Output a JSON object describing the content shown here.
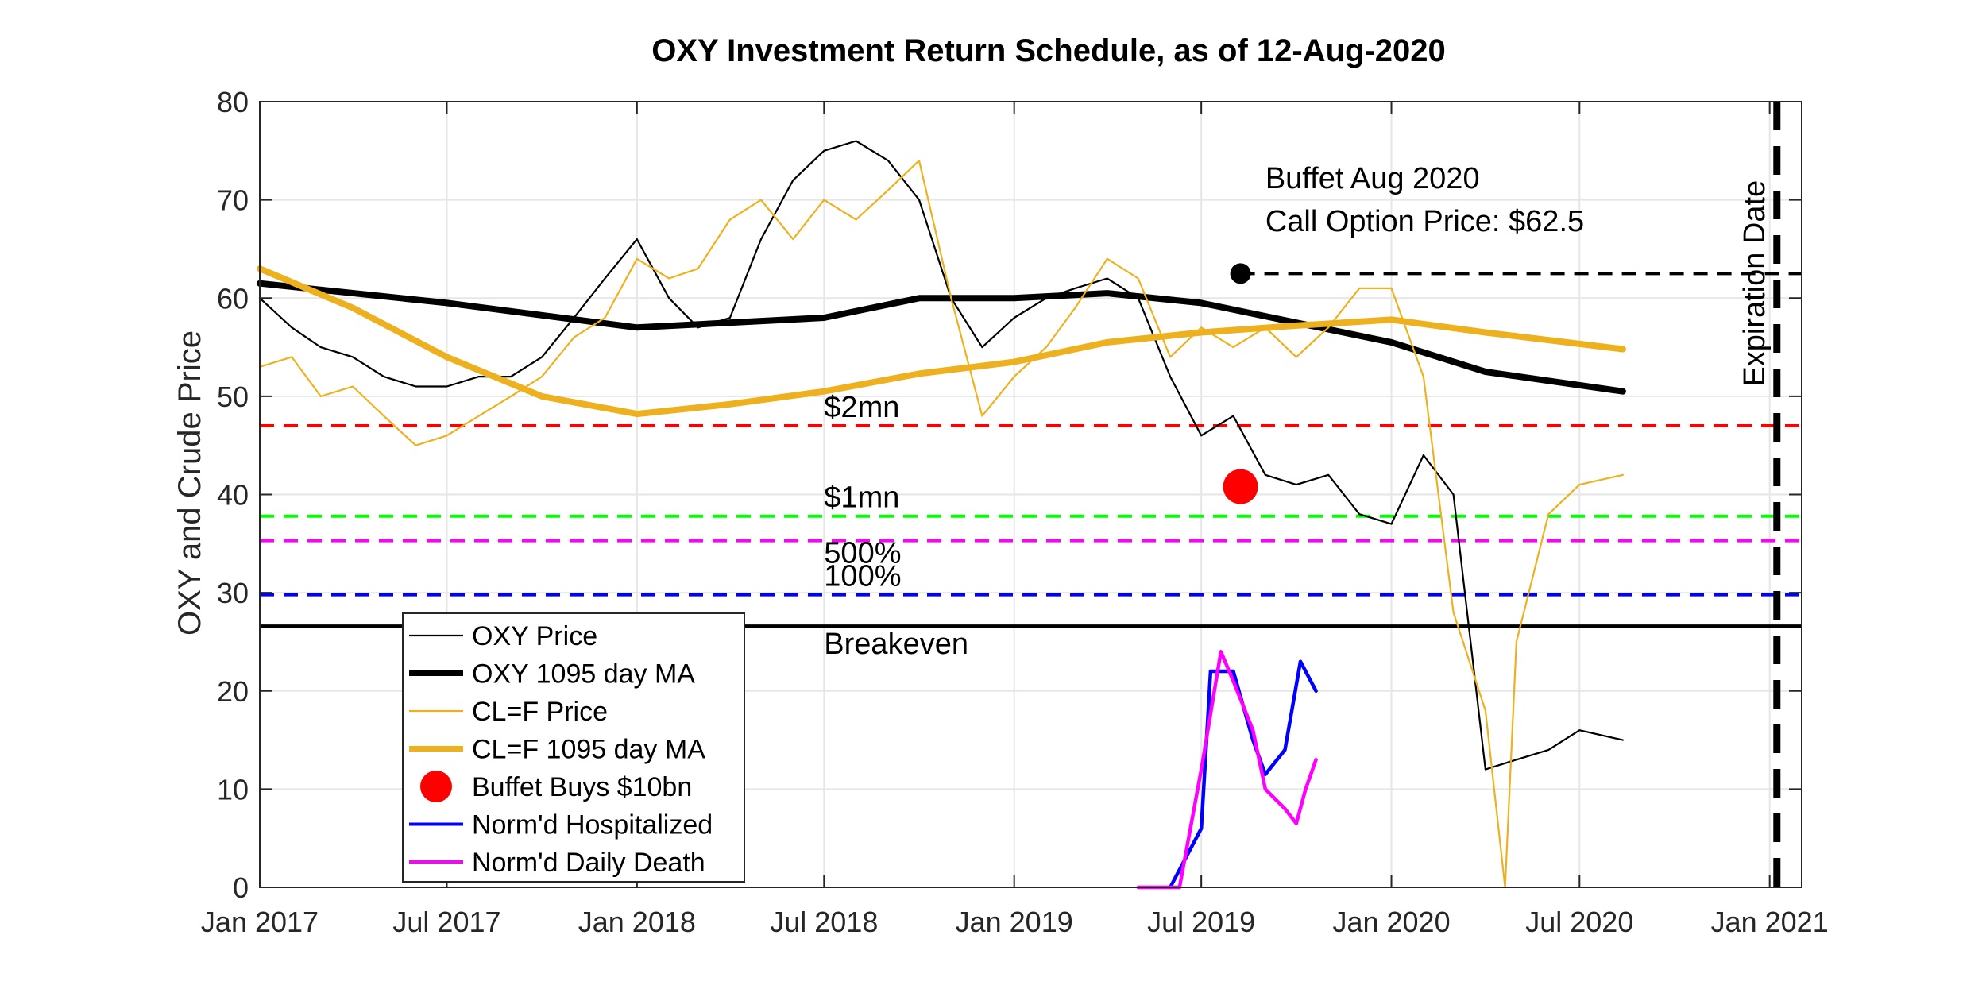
{
  "chart_data": {
    "type": "line",
    "title": "OXY Investment Return Schedule, as of 12-Aug-2020",
    "xlabel": "",
    "ylabel": "OXY and Crude Price",
    "xlim": [
      "2017-01-01",
      "2021-02-01"
    ],
    "ylim": [
      0,
      80
    ],
    "grid": true,
    "x_ticks": [
      "Jan 2017",
      "Jul 2017",
      "Jan 2018",
      "Jul 2018",
      "Jan 2019",
      "Jul 2019",
      "Jan 2020",
      "Jul 2020",
      "Jan 2021"
    ],
    "x_tick_dates": [
      "2017-01-01",
      "2017-07-01",
      "2018-01-01",
      "2018-07-01",
      "2019-01-01",
      "2019-07-01",
      "2020-01-01",
      "2020-07-01",
      "2021-01-01"
    ],
    "y_ticks": [
      0,
      10,
      20,
      30,
      40,
      50,
      60,
      70,
      80
    ],
    "legend": {
      "placement": "bottom-left",
      "entries": [
        "OXY Price",
        "OXY 1095 day MA",
        "CL=F Price",
        "CL=F 1095 day MA",
        "Buffet Buys $10bn",
        "Norm'd Hospitalized",
        "Norm'd Daily Death"
      ]
    },
    "series": [
      {
        "name": "OXY Price",
        "color": "#000000",
        "style": "thin",
        "x": [
          "2017-01-01",
          "2017-02-01",
          "2017-03-01",
          "2017-04-01",
          "2017-05-01",
          "2017-06-01",
          "2017-07-01",
          "2017-08-01",
          "2017-09-01",
          "2017-10-01",
          "2017-11-01",
          "2017-12-01",
          "2018-01-01",
          "2018-02-01",
          "2018-03-01",
          "2018-04-01",
          "2018-05-01",
          "2018-06-01",
          "2018-07-01",
          "2018-08-01",
          "2018-09-01",
          "2018-10-01",
          "2018-11-01",
          "2018-12-01",
          "2019-01-01",
          "2019-02-01",
          "2019-03-01",
          "2019-04-01",
          "2019-05-01",
          "2019-06-01",
          "2019-07-01",
          "2019-08-01",
          "2019-09-01",
          "2019-10-01",
          "2019-11-01",
          "2019-12-01",
          "2020-01-01",
          "2020-02-01",
          "2020-03-01",
          "2020-04-01",
          "2020-05-01",
          "2020-06-01",
          "2020-07-01",
          "2020-08-12"
        ],
        "values": [
          60,
          57,
          55,
          54,
          52,
          51,
          51,
          52,
          52,
          54,
          58,
          62,
          66,
          60,
          57,
          58,
          66,
          72,
          75,
          76,
          74,
          70,
          60,
          55,
          58,
          60,
          61,
          62,
          60,
          52,
          46,
          48,
          42,
          41,
          42,
          38,
          37,
          44,
          40,
          12,
          13,
          14,
          16,
          15
        ]
      },
      {
        "name": "OXY 1095 day MA",
        "color": "#000000",
        "style": "thick",
        "x": [
          "2017-01-01",
          "2017-07-01",
          "2018-01-01",
          "2018-07-01",
          "2018-10-01",
          "2019-01-01",
          "2019-04-01",
          "2019-07-01",
          "2019-10-01",
          "2020-01-01",
          "2020-04-01",
          "2020-08-12"
        ],
        "values": [
          61.5,
          59.5,
          57.0,
          58.0,
          60.0,
          60.0,
          60.5,
          59.5,
          57.5,
          55.5,
          52.5,
          50.5
        ]
      },
      {
        "name": "CL=F Price",
        "color": "#EDB120",
        "style": "thin",
        "x": [
          "2017-01-01",
          "2017-02-01",
          "2017-03-01",
          "2017-04-01",
          "2017-05-01",
          "2017-06-01",
          "2017-07-01",
          "2017-08-01",
          "2017-09-01",
          "2017-10-01",
          "2017-11-01",
          "2017-12-01",
          "2018-01-01",
          "2018-02-01",
          "2018-03-01",
          "2018-04-01",
          "2018-05-01",
          "2018-06-01",
          "2018-07-01",
          "2018-08-01",
          "2018-09-01",
          "2018-10-01",
          "2018-11-01",
          "2018-12-01",
          "2019-01-01",
          "2019-02-01",
          "2019-03-01",
          "2019-04-01",
          "2019-05-01",
          "2019-06-01",
          "2019-07-01",
          "2019-08-01",
          "2019-09-01",
          "2019-10-01",
          "2019-11-01",
          "2019-12-01",
          "2020-01-01",
          "2020-02-01",
          "2020-03-01",
          "2020-04-01",
          "2020-04-20",
          "2020-05-01",
          "2020-06-01",
          "2020-07-01",
          "2020-08-12"
        ],
        "values": [
          53,
          54,
          50,
          51,
          48,
          45,
          46,
          48,
          50,
          52,
          56,
          58,
          64,
          62,
          63,
          68,
          70,
          66,
          70,
          68,
          71,
          74,
          60,
          48,
          52,
          55,
          59,
          64,
          62,
          54,
          57,
          55,
          57,
          54,
          57,
          61,
          61,
          52,
          28,
          18,
          0,
          25,
          38,
          41,
          42
        ]
      },
      {
        "name": "CL=F 1095 day MA",
        "color": "#EDB120",
        "style": "thick",
        "x": [
          "2017-01-01",
          "2017-04-01",
          "2017-07-01",
          "2017-10-01",
          "2018-01-01",
          "2018-04-01",
          "2018-07-01",
          "2018-10-01",
          "2019-01-01",
          "2019-04-01",
          "2019-07-01",
          "2019-10-01",
          "2020-01-01",
          "2020-04-01",
          "2020-08-12"
        ],
        "values": [
          63,
          59,
          54,
          50,
          48.2,
          49.2,
          50.5,
          52.3,
          53.5,
          55.5,
          56.5,
          57.2,
          57.8,
          56.5,
          54.8
        ]
      },
      {
        "name": "Norm'd Hospitalized",
        "color": "#0000FF",
        "style": "medium",
        "x": [
          "2019-06-01",
          "2019-07-01",
          "2019-07-10",
          "2019-08-01",
          "2019-08-20",
          "2019-09-01",
          "2019-09-20",
          "2019-10-05",
          "2019-10-20"
        ],
        "values": [
          0,
          6,
          22,
          22,
          15,
          11.5,
          14,
          23,
          20
        ]
      },
      {
        "name": "Norm'd Daily Death",
        "color": "#FF00FF",
        "style": "medium",
        "x": [
          "2019-05-01",
          "2019-06-10",
          "2019-07-01",
          "2019-07-20",
          "2019-08-01",
          "2019-08-20",
          "2019-09-01",
          "2019-09-20",
          "2019-10-01",
          "2019-10-10",
          "2019-10-20"
        ],
        "values": [
          0,
          0,
          12,
          24,
          21,
          16,
          10,
          8,
          6.5,
          10,
          13
        ]
      }
    ],
    "horizontal_lines": [
      {
        "label": "$2mn",
        "value": 47,
        "color": "#FF0000",
        "style": "dashed"
      },
      {
        "label": "$1mn",
        "value": 37.8,
        "color": "#00FF00",
        "style": "dashed"
      },
      {
        "label": "500%",
        "value": 35.3,
        "color": "#FF00FF",
        "style": "dashed"
      },
      {
        "label": "100%",
        "value": 29.8,
        "color": "#0000FF",
        "style": "dashed"
      },
      {
        "label": "Breakeven",
        "value": 26.6,
        "color": "#000000",
        "style": "solid"
      }
    ],
    "markers": [
      {
        "name": "Buffet Buys $10bn",
        "x": "2019-08-08",
        "y": 40.8,
        "color": "#FF0000"
      },
      {
        "name": "Buffet Aug 2020 Call Option",
        "x": "2019-08-08",
        "y": 62.5,
        "color": "#000000"
      }
    ],
    "annotations": {
      "call_option_line1": "Buffet Aug 2020",
      "call_option_line2": "Call Option Price: $62.5",
      "call_option_value": 62.5,
      "expiration_label": "Expiration Date",
      "expiration_date": "2021-01-08"
    }
  }
}
